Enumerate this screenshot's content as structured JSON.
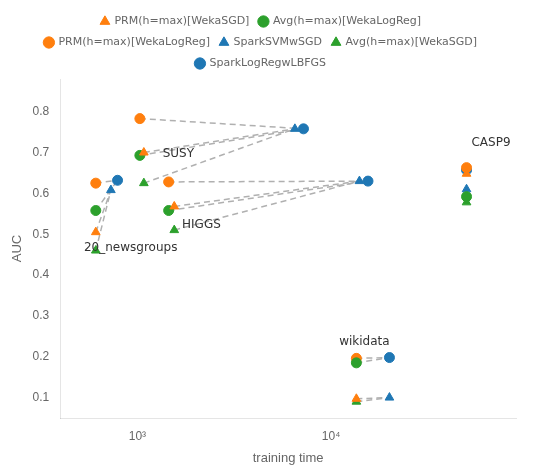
{
  "chart_data": {
    "type": "scatter",
    "xlabel": "training time",
    "ylabel": "AUC",
    "log": "x",
    "xlim": [
      400,
      90000
    ],
    "xticks": [
      {
        "value": 1000,
        "label": "10³"
      },
      {
        "value": 10000,
        "label": "10⁴"
      }
    ],
    "ylim": [
      0.05,
      0.88
    ],
    "yticks": [
      0.1,
      0.2,
      0.3,
      0.4,
      0.5,
      0.6,
      0.7,
      0.8
    ],
    "grid": false,
    "legend": "top",
    "series": [
      {
        "name": "PRM(h=max)[WekaSGD]",
        "color": "#ff7f0e",
        "marker": "triangle",
        "x": [
          610,
          1080,
          1550,
          13500,
          50000
        ],
        "values": [
          0.505,
          0.7,
          0.568,
          0.097,
          0.648
        ]
      },
      {
        "name": "Avg(h=max)[WekaLogReg]",
        "color": "#2ca02c",
        "marker": "circle",
        "x": [
          610,
          1030,
          1450,
          13500,
          50000
        ],
        "values": [
          0.558,
          0.693,
          0.558,
          0.185,
          0.592
        ]
      },
      {
        "name": "PRM(h=max)[WekaLogReg]",
        "color": "#ff7f0e",
        "marker": "circle",
        "x": [
          610,
          1030,
          1450,
          13500,
          50000
        ],
        "values": [
          0.625,
          0.783,
          0.628,
          0.196,
          0.663
        ]
      },
      {
        "name": "SparkSVMwSGD",
        "color": "#1f77b4",
        "marker": "triangle",
        "x": [
          730,
          6500,
          14000,
          20000,
          50000
        ],
        "values": [
          0.608,
          0.758,
          0.63,
          0.1,
          0.61
        ]
      },
      {
        "name": "Avg(h=max)[WekaSGD]",
        "color": "#2ca02c",
        "marker": "triangle",
        "x": [
          610,
          1080,
          1550,
          13500,
          50000
        ],
        "values": [
          0.46,
          0.625,
          0.51,
          0.09,
          0.578
        ]
      },
      {
        "name": "SparkLogRegwLBFGS",
        "color": "#1f77b4",
        "marker": "circle",
        "x": [
          790,
          7200,
          15500,
          20000,
          50000
        ],
        "values": [
          0.632,
          0.758,
          0.63,
          0.198,
          0.657
        ]
      }
    ],
    "connections": {
      "color": "#b0b0b0",
      "line_style": "dashed",
      "segments": [
        {
          "x": [
            610,
            730
          ],
          "values": [
            0.505,
            0.608
          ]
        },
        {
          "x": [
            610,
            790
          ],
          "values": [
            0.625,
            0.632
          ]
        },
        {
          "x": [
            610,
            730
          ],
          "values": [
            0.46,
            0.608
          ]
        },
        {
          "x": [
            610,
            790
          ],
          "values": [
            0.558,
            0.632
          ]
        },
        {
          "x": [
            1080,
            6500
          ],
          "values": [
            0.7,
            0.758
          ]
        },
        {
          "x": [
            1030,
            7200
          ],
          "values": [
            0.783,
            0.758
          ]
        },
        {
          "x": [
            1080,
            6500
          ],
          "values": [
            0.625,
            0.758
          ]
        },
        {
          "x": [
            1030,
            7200
          ],
          "values": [
            0.693,
            0.758
          ]
        },
        {
          "x": [
            1550,
            14000
          ],
          "values": [
            0.568,
            0.63
          ]
        },
        {
          "x": [
            1450,
            15500
          ],
          "values": [
            0.628,
            0.63
          ]
        },
        {
          "x": [
            1550,
            14000
          ],
          "values": [
            0.51,
            0.63
          ]
        },
        {
          "x": [
            1450,
            15500
          ],
          "values": [
            0.558,
            0.63
          ]
        },
        {
          "x": [
            13500,
            20000
          ],
          "values": [
            0.097,
            0.1
          ]
        },
        {
          "x": [
            13500,
            20000
          ],
          "values": [
            0.196,
            0.198
          ]
        },
        {
          "x": [
            13500,
            20000
          ],
          "values": [
            0.09,
            0.1
          ]
        },
        {
          "x": [
            13500,
            20000
          ],
          "values": [
            0.185,
            0.198
          ]
        }
      ]
    },
    "annotations": [
      {
        "text": "20_newsgroups",
        "x": 530,
        "y": 0.452
      },
      {
        "text": "SUSY",
        "x": 1350,
        "y": 0.682
      },
      {
        "text": "HIGGS",
        "x": 1700,
        "y": 0.508
      },
      {
        "text": "wikidata",
        "x": 11000,
        "y": 0.222
      },
      {
        "text": "CASP9",
        "x": 53000,
        "y": 0.71
      }
    ]
  }
}
